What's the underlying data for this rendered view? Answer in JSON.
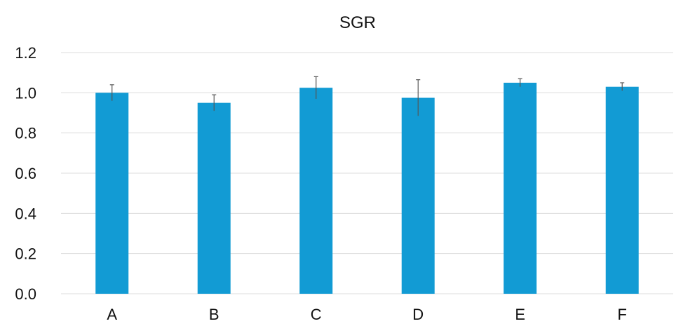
{
  "chart_data": {
    "type": "bar",
    "title": "SGR",
    "xlabel": "",
    "ylabel": "",
    "categories": [
      "A",
      "B",
      "C",
      "D",
      "E",
      "F"
    ],
    "values": [
      1.0,
      0.95,
      1.025,
      0.975,
      1.05,
      1.03
    ],
    "errors": [
      0.04,
      0.04,
      0.055,
      0.09,
      0.02,
      0.02
    ],
    "ylim": [
      0,
      1.2
    ],
    "yticks": [
      "0.0",
      "0.2",
      "0.4",
      "0.6",
      "0.8",
      "1.0",
      "1.2"
    ],
    "grid": true,
    "legend": "none",
    "bar_color": "#129bd4"
  }
}
